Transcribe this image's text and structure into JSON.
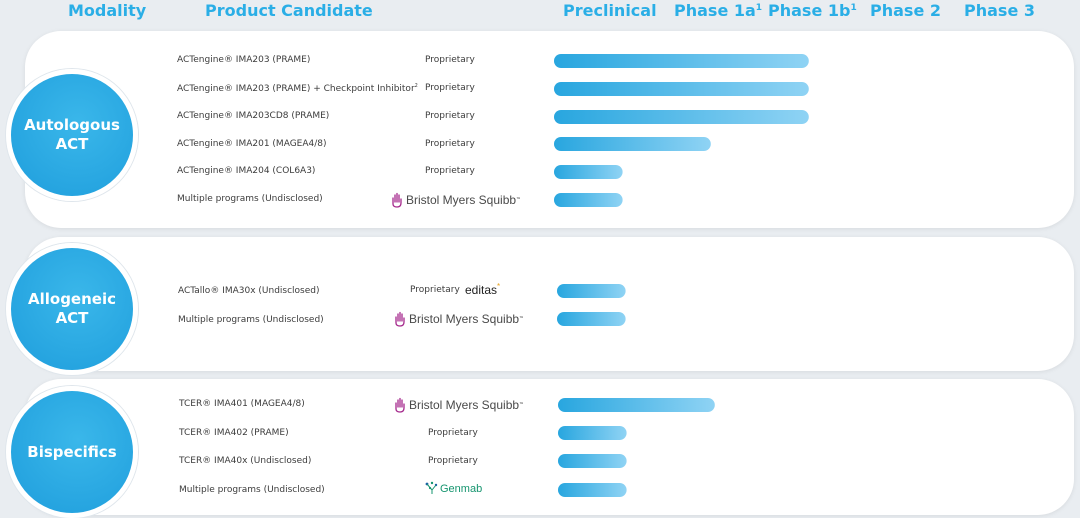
{
  "headers": {
    "modality": "Modality",
    "product_candidate": "Product Candidate",
    "preclinical": "Preclinical",
    "phase1a": "Phase 1a",
    "phase1a_sup": "1",
    "phase1b": "Phase 1b",
    "phase1b_sup": "1",
    "phase2": "Phase 2",
    "phase3": "Phase 3"
  },
  "modalities": [
    {
      "label": "Autologous\nACT"
    },
    {
      "label": "Allogeneic\nACT"
    },
    {
      "label": "Bispecifics"
    }
  ],
  "rows": [
    {
      "name": "ACTengine® IMA203 (PRAME)",
      "partner": "Proprietary"
    },
    {
      "name": "ACTengine® IMA203 (PRAME) + Checkpoint Inhibitor",
      "sup": "2",
      "partner": "Proprietary"
    },
    {
      "name": "ACTengine® IMA203CD8 (PRAME)",
      "partner": "Proprietary"
    },
    {
      "name": "ACTengine® IMA201 (MAGEA4/8)",
      "partner": "Proprietary"
    },
    {
      "name": "ACTengine® IMA204 (COL6A3)",
      "partner": "Proprietary"
    },
    {
      "name": "Multiple programs (Undisclosed)",
      "partner_logo": "Bristol Myers Squibb",
      "partner_logo_tm": "™"
    },
    {
      "name": "ACTallo® IMA30x (Undisclosed)",
      "partner": "Proprietary",
      "partner_logo": "editas",
      "partner_logo_mark": "*"
    },
    {
      "name": "Multiple programs (Undisclosed)",
      "partner_logo": "Bristol Myers Squibb",
      "partner_logo_tm": "™"
    },
    {
      "name": "TCER® IMA401 (MAGEA4/8)",
      "partner_logo": "Bristol Myers Squibb",
      "partner_logo_tm": "™"
    },
    {
      "name": "TCER® IMA402 (PRAME)",
      "partner": "Proprietary"
    },
    {
      "name": "TCER® IMA40x (Undisclosed)",
      "partner": "Proprietary"
    },
    {
      "name": "Multiple programs (Undisclosed)",
      "partner_logo": "Genmab"
    }
  ],
  "chart_data": {
    "type": "bar",
    "orientation": "horizontal",
    "stages": [
      "Preclinical",
      "Phase 1a",
      "Phase 1b",
      "Phase 2",
      "Phase 3"
    ],
    "categories": [
      "ACTengine® IMA203 (PRAME)",
      "ACTengine® IMA203 (PRAME) + Checkpoint Inhibitor",
      "ACTengine® IMA203CD8 (PRAME)",
      "ACTengine® IMA201 (MAGEA4/8)",
      "ACTengine® IMA204 (COL6A3)",
      "Multiple programs (Undisclosed)",
      "ACTallo® IMA30x (Undisclosed)",
      "Multiple programs (Undisclosed)",
      "TCER® IMA401 (MAGEA4/8)",
      "TCER® IMA402 (PRAME)",
      "TCER® IMA40x (Undisclosed)",
      "Multiple programs (Undisclosed)"
    ],
    "values": [
      2.6,
      2.6,
      2.6,
      1.6,
      0.7,
      0.7,
      0.7,
      0.7,
      1.6,
      0.7,
      0.7,
      0.7
    ],
    "value_unit": "stages completed (Preclinical = 1)",
    "xlim": [
      0,
      5
    ],
    "colors": {
      "bar_start": "#28a6df",
      "bar_end": "#8fd3f4"
    }
  }
}
